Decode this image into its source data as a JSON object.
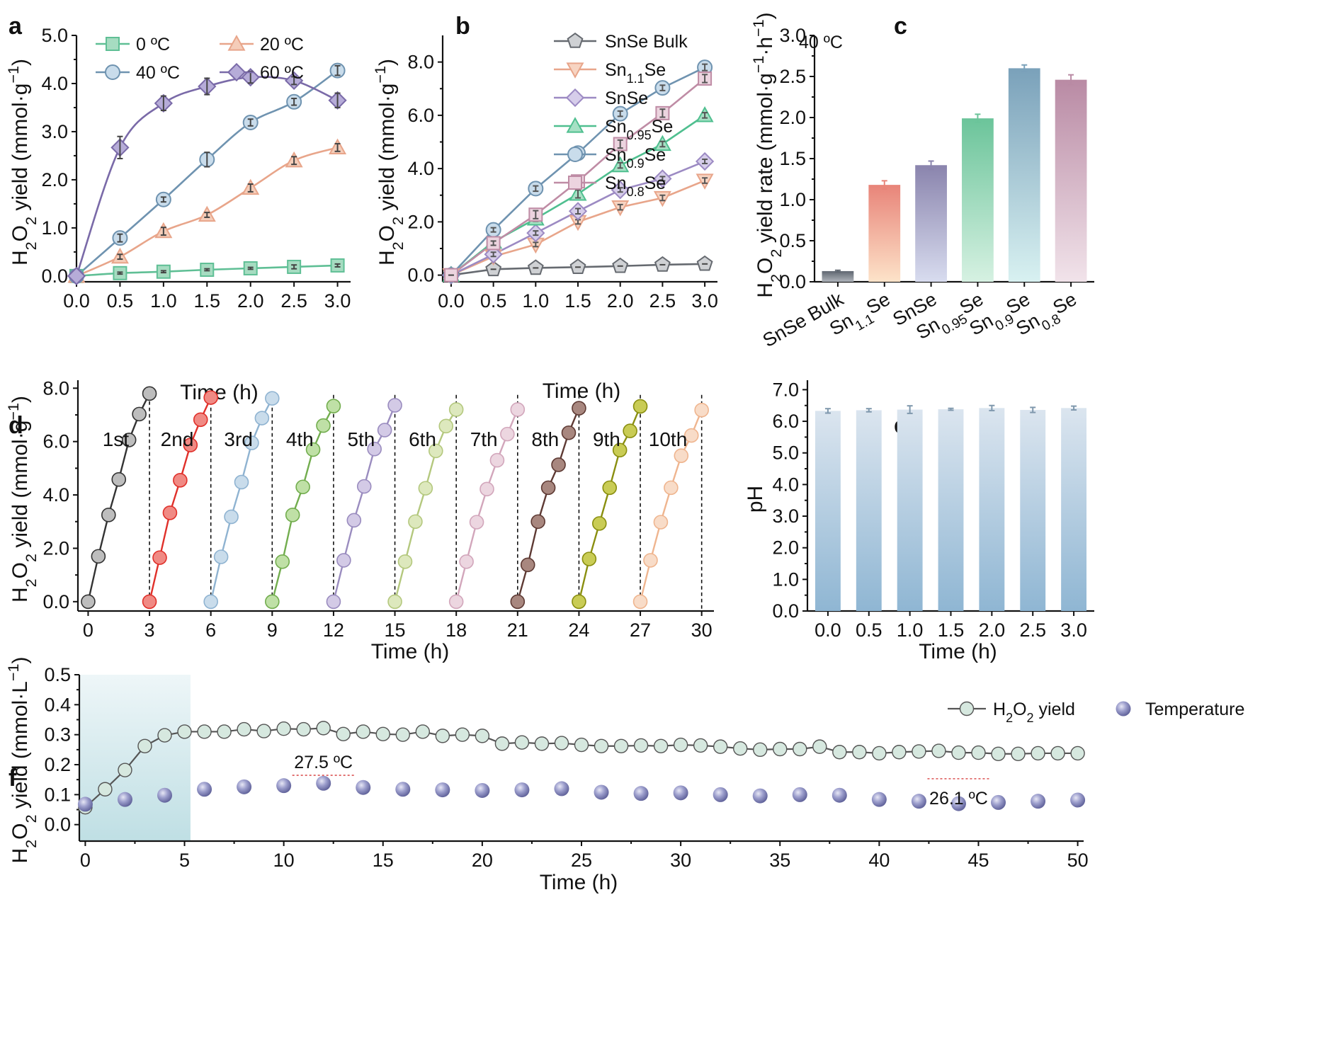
{
  "chart_data": [
    {
      "id": "a",
      "type": "line",
      "panel_label": "a",
      "xlabel": "Time (h)",
      "ylabel": {
        "pre": "H",
        "sub1": "2",
        "mid": "O",
        "sub2": "2",
        "post": " yield (mmol·g",
        "sup": "−1",
        "end": ")"
      },
      "xlim": [
        0,
        3.15
      ],
      "ylim": [
        -0.12,
        5.0
      ],
      "xticks": [
        0,
        0.5,
        1.0,
        1.5,
        2.0,
        2.5,
        3.0
      ],
      "xtick_labels": [
        "0.0",
        "0.5",
        "1.0",
        "1.5",
        "2.0",
        "2.5",
        "3.0"
      ],
      "yticks": [
        0,
        1,
        2,
        3,
        4,
        5
      ],
      "ytick_labels": [
        "0.0",
        "1.0",
        "2.0",
        "3.0",
        "4.0",
        "5.0"
      ],
      "legend_position": "top",
      "series": [
        {
          "name": "0 ºC",
          "marker": "square",
          "color": "#5fbf95",
          "fill": "#a6dcc1",
          "smooth": true,
          "x": [
            0,
            0.5,
            1.0,
            1.5,
            2.0,
            2.5,
            3.0
          ],
          "y": [
            0,
            0.06,
            0.09,
            0.13,
            0.16,
            0.19,
            0.22
          ],
          "err": [
            0,
            0.02,
            0.02,
            0.02,
            0.02,
            0.04,
            0.03
          ]
        },
        {
          "name": "20 ºC",
          "marker": "triangle",
          "color": "#e8a58a",
          "fill": "#f5cdb9",
          "smooth": true,
          "x": [
            0,
            0.5,
            1.0,
            1.5,
            2.0,
            2.5,
            3.0
          ],
          "y": [
            0,
            0.4,
            0.93,
            1.27,
            1.83,
            2.4,
            2.67
          ],
          "err": [
            0,
            0.05,
            0.08,
            0.05,
            0.08,
            0.08,
            0.08
          ]
        },
        {
          "name": "40 ºC",
          "marker": "circle",
          "color": "#6f93b0",
          "fill": "#c9dceb",
          "smooth": true,
          "x": [
            0,
            0.5,
            1.0,
            1.5,
            2.0,
            2.5,
            3.0
          ],
          "y": [
            0,
            0.79,
            1.59,
            2.42,
            3.19,
            3.62,
            4.27
          ],
          "err": [
            0,
            0.08,
            0.05,
            0.15,
            0.07,
            0.07,
            0.1
          ]
        },
        {
          "name": "60 ºC",
          "marker": "diamond",
          "color": "#7a6aa8",
          "fill": "#b6acd8",
          "smooth": true,
          "x": [
            0,
            0.5,
            1.0,
            1.5,
            2.0,
            2.5,
            3.0
          ],
          "y": [
            0,
            2.67,
            3.59,
            3.94,
            4.13,
            4.06,
            3.65
          ],
          "err": [
            0,
            0.23,
            0.15,
            0.17,
            0.12,
            0.08,
            0.15
          ]
        }
      ]
    },
    {
      "id": "b",
      "type": "line",
      "panel_label": "b",
      "annotation": "40 ºC",
      "xlabel": "Time (h)",
      "ylabel": {
        "pre": "H",
        "sub1": "2",
        "mid": "O",
        "sub2": "2",
        "post": " yield (mmol·g",
        "sup": "−1",
        "end": ")"
      },
      "xlim": [
        -0.1,
        3.15
      ],
      "ylim": [
        -0.25,
        9.0
      ],
      "xticks": [
        0,
        0.5,
        1.0,
        1.5,
        2.0,
        2.5,
        3.0
      ],
      "xtick_labels": [
        "0.0",
        "0.5",
        "1.0",
        "1.5",
        "2.0",
        "2.5",
        "3.0"
      ],
      "yticks": [
        0,
        2,
        4,
        6,
        8
      ],
      "ytick_labels": [
        "0.0",
        "2.0",
        "4.0",
        "6.0",
        "8.0"
      ],
      "legend_position": "top-left",
      "series": [
        {
          "name": "SnSe Bulk",
          "label": {
            "a": "SnSe Bulk",
            "sub": "",
            "b": ""
          },
          "marker": "pentagon",
          "color": "#666a70",
          "fill": "#cfd1d4",
          "x": [
            0,
            0.5,
            1.0,
            1.5,
            2.0,
            2.5,
            3.0
          ],
          "y": [
            0,
            0.22,
            0.27,
            0.3,
            0.34,
            0.39,
            0.42
          ],
          "err": [
            0,
            0,
            0,
            0,
            0,
            0,
            0
          ]
        },
        {
          "name": "Sn1.1Se",
          "label": {
            "a": "Sn",
            "sub": "1.1",
            "b": "Se"
          },
          "marker": "triangle-down",
          "color": "#e8a58a",
          "fill": "#f7d4c2",
          "x": [
            0,
            0.5,
            1.0,
            1.5,
            2.0,
            2.5,
            3.0
          ],
          "y": [
            0,
            0.7,
            1.15,
            2.0,
            2.55,
            2.9,
            3.55
          ],
          "err": [
            0,
            0.08,
            0.08,
            0.08,
            0.1,
            0.1,
            0.1
          ]
        },
        {
          "name": "SnSe",
          "label": {
            "a": "SnSe",
            "sub": "",
            "b": ""
          },
          "marker": "diamond",
          "color": "#9c8ac3",
          "fill": "#d6cdea",
          "x": [
            0,
            0.5,
            1.0,
            1.5,
            2.0,
            2.5,
            3.0
          ],
          "y": [
            0,
            0.78,
            1.58,
            2.4,
            3.2,
            3.62,
            4.27
          ],
          "err": [
            0,
            0.08,
            0.08,
            0.1,
            0.08,
            0.08,
            0.08
          ]
        },
        {
          "name": "Sn0.95Se",
          "label": {
            "a": "Sn",
            "sub": "0.95",
            "b": "Se"
          },
          "marker": "triangle",
          "color": "#4fbf8f",
          "fill": "#a6e0c4",
          "x": [
            0,
            0.5,
            1.0,
            1.5,
            2.0,
            2.5,
            3.0
          ],
          "y": [
            0,
            1.25,
            2.12,
            3.05,
            4.12,
            4.92,
            6.0
          ],
          "err": [
            0,
            0.08,
            0.1,
            0.15,
            0.1,
            0.1,
            0.1
          ]
        },
        {
          "name": "Sn0.9Se",
          "label": {
            "a": "Sn",
            "sub": "0.9",
            "b": "Se"
          },
          "marker": "circle",
          "color": "#6f93b0",
          "fill": "#c9dceb",
          "x": [
            0,
            0.5,
            1.0,
            1.5,
            2.0,
            2.5,
            3.0
          ],
          "y": [
            0,
            1.7,
            3.25,
            4.58,
            6.06,
            7.03,
            7.8
          ],
          "err": [
            0,
            0.08,
            0.1,
            0.1,
            0.1,
            0.1,
            0.12
          ]
        },
        {
          "name": "Sn0.8Se",
          "label": {
            "a": "Sn",
            "sub": "0.8",
            "b": "Se"
          },
          "marker": "square",
          "color": "#bf8ca5",
          "fill": "#ecd4df",
          "x": [
            0,
            0.5,
            1.0,
            1.5,
            2.0,
            2.5,
            3.0
          ],
          "y": [
            0,
            1.2,
            2.27,
            3.52,
            4.92,
            6.08,
            7.38
          ],
          "err": [
            0,
            0.08,
            0.15,
            0.12,
            0.15,
            0.15,
            0.15
          ]
        }
      ]
    },
    {
      "id": "c",
      "type": "bar",
      "panel_label": "c",
      "ylabel": {
        "pre": "H",
        "sub1": "2",
        "mid": "O",
        "sub2": "2",
        "post": " yield rate (mmol·g",
        "sup": "−1",
        "post2": "·h",
        "sup2": "−1",
        "end": ")"
      },
      "ylim": [
        0,
        3.0
      ],
      "yticks": [
        0,
        0.5,
        1.0,
        1.5,
        2.0,
        2.5,
        3.0
      ],
      "ytick_labels": [
        "0.0",
        "0.5",
        "1.0",
        "1.5",
        "2.0",
        "2.5",
        "3.0"
      ],
      "categories": [
        "SnSe Bulk",
        "Sn1.1Se",
        "SnSe",
        "Sn0.95Se",
        "Sn0.9Se",
        "Sn0.8Se"
      ],
      "category_labels": [
        {
          "a": "SnSe Bulk",
          "sub": "",
          "b": ""
        },
        {
          "a": "Sn",
          "sub": "1.1",
          "b": "Se"
        },
        {
          "a": "SnSe",
          "sub": "",
          "b": ""
        },
        {
          "a": "Sn",
          "sub": "0.95",
          "b": "Se"
        },
        {
          "a": "Sn",
          "sub": "0.9",
          "b": "Se"
        },
        {
          "a": "Sn",
          "sub": "0.8",
          "b": "Se"
        }
      ],
      "values": [
        0.13,
        1.18,
        1.42,
        1.99,
        2.6,
        2.46
      ],
      "err": [
        0.01,
        0.05,
        0.05,
        0.05,
        0.04,
        0.06
      ],
      "colors_top": [
        "#5f6670",
        "#e88479",
        "#8a84ad",
        "#6bc49a",
        "#7aa1ba",
        "#b98aa4"
      ],
      "colors_bottom": [
        "#aeb3ba",
        "#fde3c9",
        "#d8dcef",
        "#d6f1e2",
        "#d8f1f1",
        "#f1e3ea"
      ]
    },
    {
      "id": "d",
      "type": "line",
      "panel_label": "d",
      "xlabel": "Time (h)",
      "ylabel": {
        "pre": "H",
        "sub1": "2",
        "mid": "O",
        "sub2": "2",
        "post": " yield (mmol·g",
        "sup": "−1",
        "end": ")"
      },
      "xlim": [
        -0.5,
        30.6
      ],
      "ylim": [
        -0.35,
        8.3
      ],
      "xticks": [
        0,
        3,
        6,
        9,
        12,
        15,
        18,
        21,
        24,
        27,
        30
      ],
      "xtick_labels": [
        "0",
        "3",
        "6",
        "9",
        "12",
        "15",
        "18",
        "21",
        "24",
        "27",
        "30"
      ],
      "yticks": [
        0,
        2,
        4,
        6,
        8
      ],
      "ytick_labels": [
        "0.0",
        "2.0",
        "4.0",
        "6.0",
        "8.0"
      ],
      "cycle_dividers": [
        3,
        6,
        9,
        12,
        15,
        18,
        21,
        24,
        27,
        30
      ],
      "cycles": [
        {
          "label": "1st",
          "color": "#333333",
          "fill": "#bdbdbd",
          "y": [
            0,
            1.7,
            3.25,
            4.58,
            6.06,
            7.03,
            7.8
          ]
        },
        {
          "label": "2nd",
          "color": "#e0302a",
          "fill": "#f08a84",
          "y": [
            0,
            1.65,
            3.33,
            4.55,
            5.87,
            6.82,
            7.65
          ]
        },
        {
          "label": "3rd",
          "color": "#8fb3d1",
          "fill": "#c9dceb",
          "y": [
            0,
            1.68,
            3.18,
            4.48,
            5.95,
            6.88,
            7.62
          ]
        },
        {
          "label": "4th",
          "color": "#72ad4e",
          "fill": "#bfe0a6",
          "y": [
            0,
            1.5,
            3.25,
            4.3,
            5.7,
            6.6,
            7.33
          ]
        },
        {
          "label": "5th",
          "color": "#9a8cbf",
          "fill": "#d3cae6",
          "y": [
            0,
            1.55,
            3.05,
            4.32,
            5.72,
            6.43,
            7.36
          ]
        },
        {
          "label": "6th",
          "color": "#b4c87e",
          "fill": "#dde8bd",
          "y": [
            0,
            1.5,
            3.0,
            4.25,
            5.65,
            6.58,
            7.2
          ]
        },
        {
          "label": "7th",
          "color": "#d2a6bb",
          "fill": "#ecd6e0",
          "y": [
            0,
            1.5,
            2.98,
            4.22,
            5.3,
            6.28,
            7.2
          ]
        },
        {
          "label": "8th",
          "color": "#5e3a34",
          "fill": "#a8877f",
          "y": [
            0,
            1.38,
            3.0,
            4.27,
            5.13,
            6.33,
            7.25
          ]
        },
        {
          "label": "9th",
          "color": "#8a8f10",
          "fill": "#c9cc55",
          "y": [
            0,
            1.6,
            2.93,
            4.27,
            5.68,
            6.4,
            7.32
          ]
        },
        {
          "label": "10th",
          "color": "#efb58f",
          "fill": "#f8dcc8",
          "y": [
            0,
            1.55,
            2.98,
            4.27,
            5.47,
            6.23,
            7.18
          ]
        }
      ]
    },
    {
      "id": "e",
      "type": "bar",
      "panel_label": "e",
      "xlabel": "Time (h)",
      "ylabel": "pH",
      "ylim": [
        0,
        7.3
      ],
      "yticks": [
        0,
        1,
        2,
        3,
        4,
        5,
        6,
        7
      ],
      "ytick_labels": [
        "0.0",
        "1.0",
        "2.0",
        "3.0",
        "4.0",
        "5.0",
        "6.0",
        "7.0"
      ],
      "categories": [
        "0.0",
        "0.5",
        "1.0",
        "1.5",
        "2.0",
        "2.5",
        "3.0"
      ],
      "values": [
        6.33,
        6.35,
        6.37,
        6.38,
        6.42,
        6.36,
        6.42
      ],
      "err": [
        0.07,
        0.05,
        0.12,
        0.03,
        0.08,
        0.08,
        0.06
      ],
      "color_top": "#dbe5ef",
      "color_bottom": "#8fb6d3"
    },
    {
      "id": "f",
      "type": "scatter",
      "panel_label": "f",
      "xlabel": "Time (h)",
      "ylabel": {
        "pre": "H",
        "sub1": "2",
        "mid": "O",
        "sub2": "2",
        "post": " yield (mmol·L",
        "sup": "−1",
        "end": ")"
      },
      "xlim": [
        -0.3,
        50.3
      ],
      "ylim": [
        -0.055,
        0.5
      ],
      "xticks": [
        0,
        5,
        10,
        15,
        20,
        25,
        30,
        35,
        40,
        45,
        50
      ],
      "xtick_labels": [
        "0",
        "5",
        "10",
        "15",
        "20",
        "25",
        "30",
        "35",
        "40",
        "45",
        "50"
      ],
      "yticks": [
        0,
        0.1,
        0.2,
        0.3,
        0.4,
        0.5
      ],
      "ytick_labels": [
        "0.0",
        "0.1",
        "0.2",
        "0.3",
        "0.4",
        "0.5"
      ],
      "shaded_region": [
        -0.3,
        5.3
      ],
      "legend": [
        {
          "pre": "H",
          "sub1": "2",
          "mid": "O",
          "sub2": "2",
          "post": " yield"
        },
        {
          "text": "Temperature"
        }
      ],
      "annotations": [
        {
          "text": "27.5 ºC",
          "x": 12.0,
          "y": 0.155
        },
        {
          "text": "26.1 ºC",
          "x": 44.0,
          "y": 0.035
        }
      ],
      "series": [
        {
          "name": "H2O2 yield",
          "marker": "circle",
          "color": "#555555",
          "fill": "#d6e8df",
          "x": [
            0,
            1,
            2,
            3,
            4,
            5,
            6,
            7,
            8,
            9,
            10,
            11,
            12,
            13,
            14,
            15,
            16,
            17,
            18,
            19,
            20,
            21,
            22,
            23,
            24,
            25,
            26,
            27,
            28,
            29,
            30,
            31,
            32,
            33,
            34,
            35,
            36,
            37,
            38,
            39,
            40,
            41,
            42,
            43,
            44,
            45,
            46,
            47,
            48,
            49,
            50
          ],
          "y": [
            0.058,
            0.118,
            0.182,
            0.262,
            0.298,
            0.31,
            0.31,
            0.31,
            0.318,
            0.312,
            0.32,
            0.318,
            0.322,
            0.302,
            0.31,
            0.302,
            0.3,
            0.31,
            0.296,
            0.3,
            0.296,
            0.27,
            0.274,
            0.27,
            0.272,
            0.266,
            0.262,
            0.262,
            0.264,
            0.262,
            0.266,
            0.264,
            0.26,
            0.254,
            0.25,
            0.252,
            0.252,
            0.26,
            0.242,
            0.242,
            0.238,
            0.242,
            0.244,
            0.246,
            0.24,
            0.24,
            0.236,
            0.236,
            0.238,
            0.238,
            0.238
          ]
        },
        {
          "name": "Temperature",
          "marker": "sphere",
          "color": "#6d6fa8",
          "fill": "#c7c8e4",
          "x": [
            0,
            2,
            4,
            6,
            8,
            10,
            12,
            14,
            16,
            18,
            20,
            22,
            24,
            26,
            28,
            30,
            32,
            34,
            36,
            38,
            40,
            42,
            44,
            46,
            48,
            50
          ],
          "y": [
            0.068,
            0.084,
            0.098,
            0.118,
            0.126,
            0.13,
            0.138,
            0.124,
            0.118,
            0.116,
            0.114,
            0.116,
            0.12,
            0.108,
            0.104,
            0.106,
            0.1,
            0.096,
            0.1,
            0.098,
            0.084,
            0.078,
            0.07,
            0.074,
            0.078,
            0.082
          ]
        }
      ]
    }
  ]
}
